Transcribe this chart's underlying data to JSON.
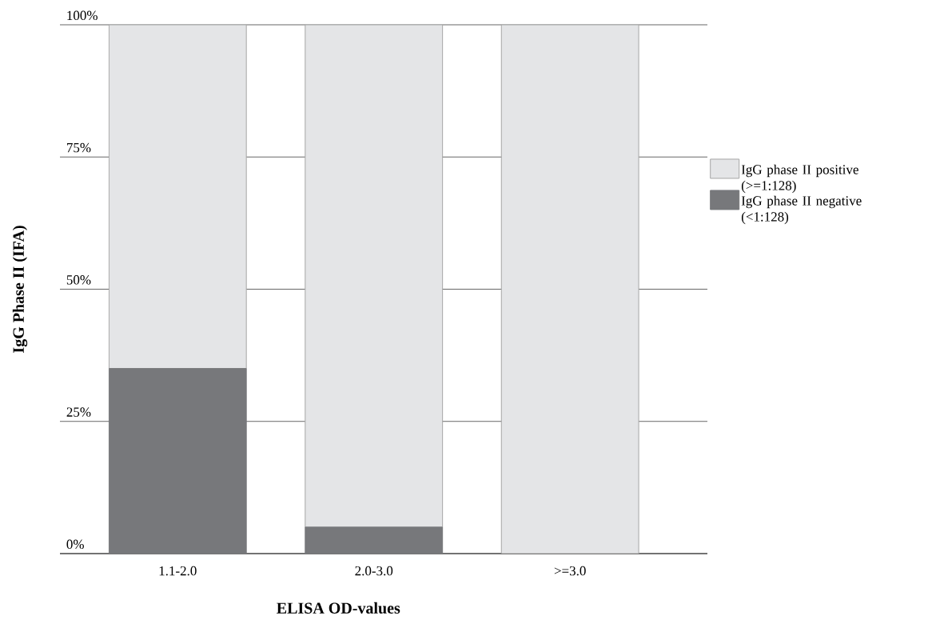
{
  "chart_data": {
    "type": "bar",
    "stacked": true,
    "xlabel": "ELISA OD-values",
    "ylabel": "IgG Phase II (IFA)",
    "categories": [
      "1.1-2.0",
      "2.0-3.0",
      ">=3.0"
    ],
    "series": [
      {
        "name": "IgG phase II negative (<1:128)",
        "color": "#77787b",
        "values": [
          35,
          5,
          0
        ]
      },
      {
        "name": "IgG phase II positive (>=1:128)",
        "color": "#e4e5e7",
        "values": [
          65,
          95,
          100
        ]
      }
    ],
    "ylim": [
      0,
      100
    ],
    "yticks": [
      {
        "value": 0,
        "label": "0%"
      },
      {
        "value": 25,
        "label": "25%"
      },
      {
        "value": 50,
        "label": "50%"
      },
      {
        "value": 75,
        "label": "75%"
      },
      {
        "value": 100,
        "label": "100%"
      }
    ],
    "grid": "y",
    "legend": "right"
  }
}
